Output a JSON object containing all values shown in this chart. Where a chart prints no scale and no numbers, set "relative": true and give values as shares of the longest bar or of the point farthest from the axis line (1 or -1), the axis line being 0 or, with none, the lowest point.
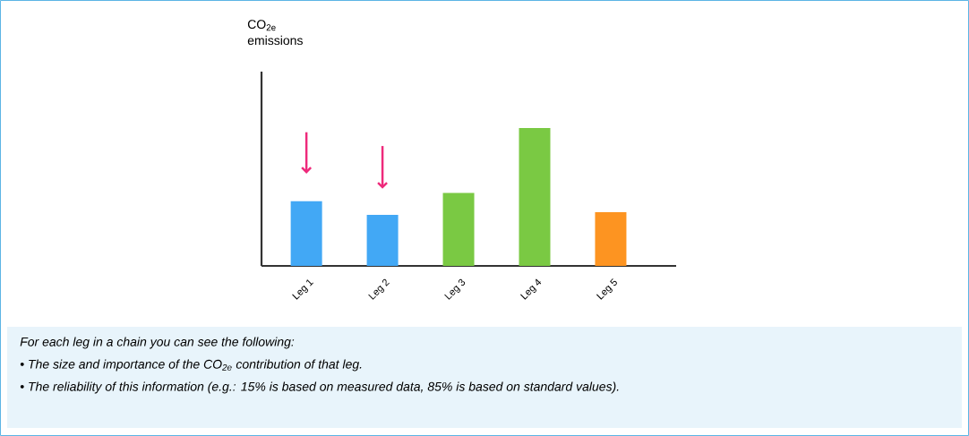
{
  "chart_data": {
    "type": "bar",
    "relative": true,
    "categories": [
      "Leg 1",
      "Leg 2",
      "Leg 3",
      "Leg 4",
      "Leg 5"
    ],
    "values": [
      0.47,
      0.37,
      0.53,
      1,
      0.39
    ],
    "colors": [
      "#42a8f5",
      "#42a8f5",
      "#7ac943",
      "#7ac943",
      "#fd9421"
    ],
    "annotations": [
      "CO$_{2e}$ emissions",
      "For each leg in a chain you can see the following:",
      "• The size and importance of the CO$_{2e}$ contribution of that leg.",
      "• The reliability of this information (e.g.: 15% is based on measured data, 85% is based on standard values)."
    ]
  }
}
